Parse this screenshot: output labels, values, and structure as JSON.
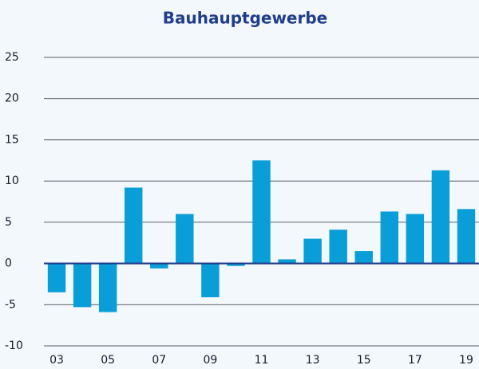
{
  "chart_data": {
    "type": "bar",
    "title": "Bauhauptgewerbe",
    "categories": [
      "03",
      null,
      "05",
      null,
      "07",
      null,
      "09",
      null,
      "11",
      null,
      "13",
      null,
      "15",
      null,
      "17",
      null,
      "19"
    ],
    "values": [
      -3.5,
      -5.3,
      -5.9,
      9.2,
      -0.6,
      6.0,
      -4.1,
      -0.3,
      12.5,
      0.5,
      3.0,
      4.1,
      1.5,
      6.3,
      6.0,
      11.3,
      6.6
    ],
    "color": "#0a9ed9",
    "ylim": [
      -10,
      25
    ],
    "yticks": [
      -10,
      -5,
      0,
      5,
      10,
      15,
      20,
      25
    ],
    "grid": true
  }
}
